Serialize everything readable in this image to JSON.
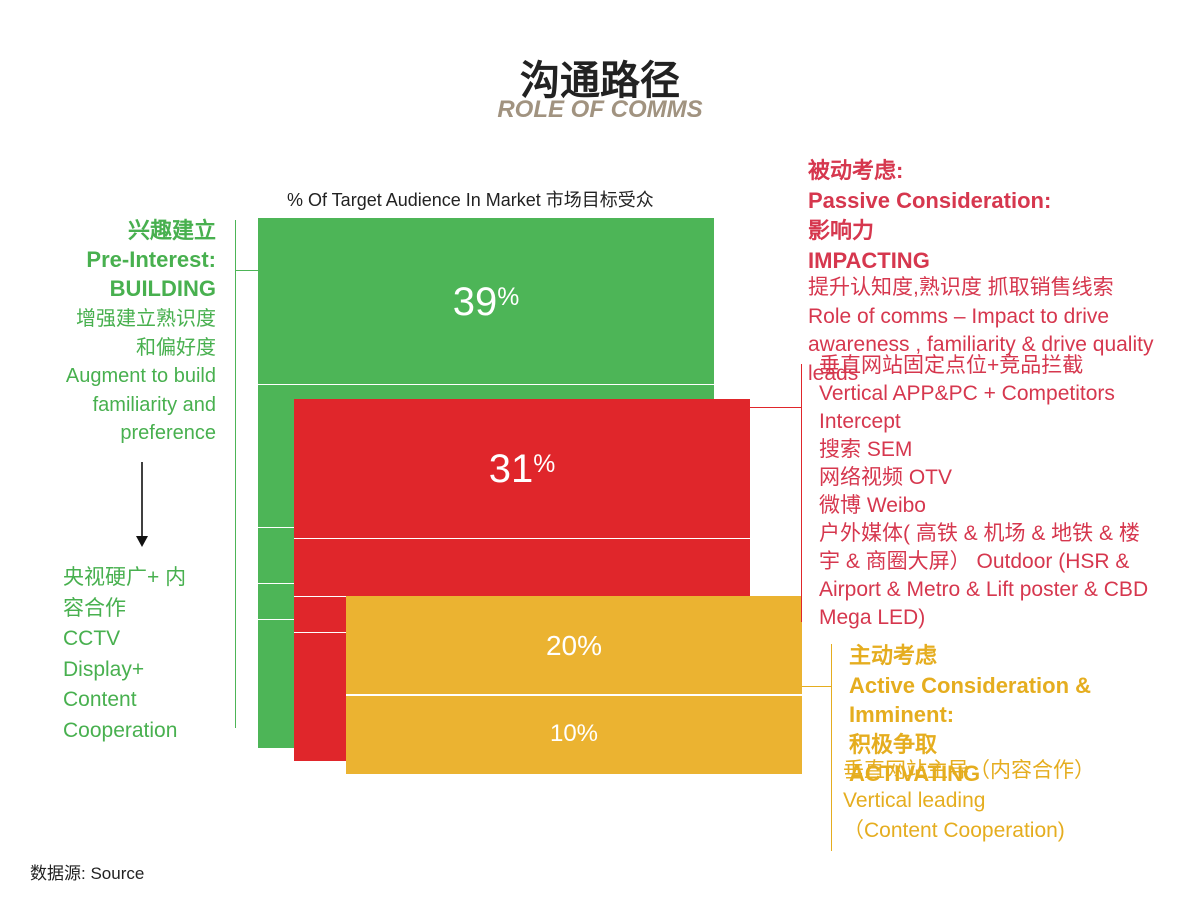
{
  "title": {
    "cn": "沟通路径",
    "en": "ROLE OF COMMS"
  },
  "chart_header": "% Of Target Audience In Market 市场目标受众",
  "chart_data": {
    "type": "bar",
    "categories": [
      "BUILDING",
      "IMPACTING",
      "ACTIVATING (active)",
      "ACTIVATING (imminent)"
    ],
    "values": [
      39,
      31,
      20,
      10
    ],
    "value_labels": [
      "39%",
      "31%",
      "20%",
      "10%"
    ],
    "colors": [
      "#4db557",
      "#e0262b",
      "#ebb331",
      "#ebb331"
    ]
  },
  "pre_interest": {
    "heading_lines": [
      "兴趣建立",
      "Pre-Interest:",
      "BUILDING"
    ],
    "desc_lines": [
      "增强建立熟识度",
      "和偏好度",
      "Augment to build",
      "familiarity and",
      "preference"
    ],
    "media_lines": [
      "央视硬广+ 内",
      "容合作",
      "CCTV",
      "Display+",
      "Content",
      "Cooperation"
    ]
  },
  "passive": {
    "heading_lines": [
      "被动考虑:",
      "Passive Consideration:",
      "影响力",
      "IMPACTING"
    ],
    "desc_lines": [
      "提升认知度,熟识度 抓取销售线索",
      "Role of comms – Impact to drive",
      "awareness , familiarity & drive quality",
      "leads"
    ],
    "media_lines": [
      "垂直网站固定点位+竞品拦截",
      "Vertical APP&PC + Competitors",
      "Intercept",
      "搜索 SEM",
      "网络视频 OTV",
      "微博 Weibo",
      "户外媒体( 高铁 & 机场 & 地铁 & 楼",
      "宇 & 商圈大屏） Outdoor (HSR &",
      "Airport & Metro & Lift poster & CBD",
      "Mega LED)"
    ]
  },
  "active": {
    "heading_lines": [
      "主动考虑",
      "Active Consideration &",
      "Imminent:",
      "积极争取",
      "ACTIVATING"
    ],
    "media_lines": [
      "垂直网站主导（内容合作）",
      "Vertical leading",
      "（Content Cooperation)"
    ]
  },
  "source": "数据源: Source",
  "colors": {
    "green": "#4db557",
    "red": "#e0262b",
    "amber": "#ebb331",
    "heading_red": "#d6374e",
    "heading_gold": "#e5ad1f",
    "subtitle": "#a19380"
  }
}
